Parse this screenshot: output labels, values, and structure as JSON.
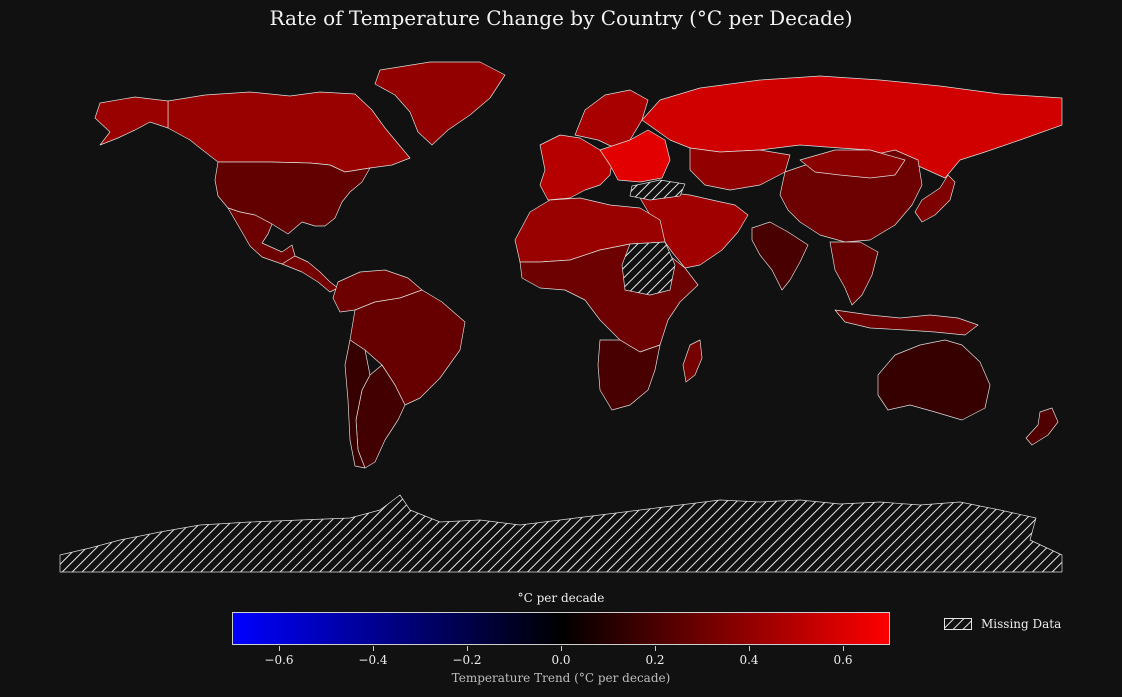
{
  "title": "Rate of Temperature Change by Country (°C per Decade)",
  "colors": {
    "background": "#111111",
    "cold": "#0000ff",
    "neutral": "#000000",
    "hot": "#ff0000",
    "missing_hatch": "#e6e6e6",
    "border": "#dddddd"
  },
  "colorbar": {
    "top_label": "°C per decade",
    "axis_label": "Temperature Trend (°C per decade)",
    "range": [
      -0.7,
      0.7
    ],
    "ticks": [
      "−0.6",
      "−0.4",
      "−0.2",
      "0.0",
      "0.2",
      "0.4",
      "0.6"
    ],
    "tick_values": [
      -0.6,
      -0.4,
      -0.2,
      0.0,
      0.2,
      0.4,
      0.6
    ]
  },
  "legend": {
    "missing_label": "Missing Data"
  },
  "regions": [
    {
      "name": "Canada",
      "trend": 0.42
    },
    {
      "name": "Alaska",
      "trend": 0.42
    },
    {
      "name": "Greenland",
      "trend": 0.4
    },
    {
      "name": "United States",
      "trend": 0.27
    },
    {
      "name": "Mexico",
      "trend": 0.3
    },
    {
      "name": "Central America",
      "trend": 0.32
    },
    {
      "name": "South America North",
      "trend": 0.3
    },
    {
      "name": "Brazil",
      "trend": 0.28
    },
    {
      "name": "Argentina",
      "trend": 0.18
    },
    {
      "name": "Chile",
      "trend": 0.15
    },
    {
      "name": "Western Europe",
      "trend": 0.5
    },
    {
      "name": "Scandinavia",
      "trend": 0.46
    },
    {
      "name": "Eastern Europe",
      "trend": 0.62
    },
    {
      "name": "Russia",
      "trend": 0.57
    },
    {
      "name": "Kazakhstan",
      "trend": 0.4
    },
    {
      "name": "Middle East",
      "trend": 0.44
    },
    {
      "name": "North Africa",
      "trend": 0.42
    },
    {
      "name": "Sub-Saharan Africa",
      "trend": 0.3
    },
    {
      "name": "Southern Africa",
      "trend": 0.2
    },
    {
      "name": "Madagascar",
      "trend": 0.32
    },
    {
      "name": "India",
      "trend": 0.2
    },
    {
      "name": "China",
      "trend": 0.3
    },
    {
      "name": "Mongolia",
      "trend": 0.38
    },
    {
      "name": "Southeast Asia",
      "trend": 0.28
    },
    {
      "name": "Japan",
      "trend": 0.35
    },
    {
      "name": "Indonesia",
      "trend": 0.3
    },
    {
      "name": "Australia",
      "trend": 0.15
    },
    {
      "name": "New Zealand",
      "trend": 0.22
    },
    {
      "name": "Turkey",
      "trend": null
    },
    {
      "name": "Sudan",
      "trend": null
    },
    {
      "name": "Antarctica",
      "trend": null
    }
  ]
}
